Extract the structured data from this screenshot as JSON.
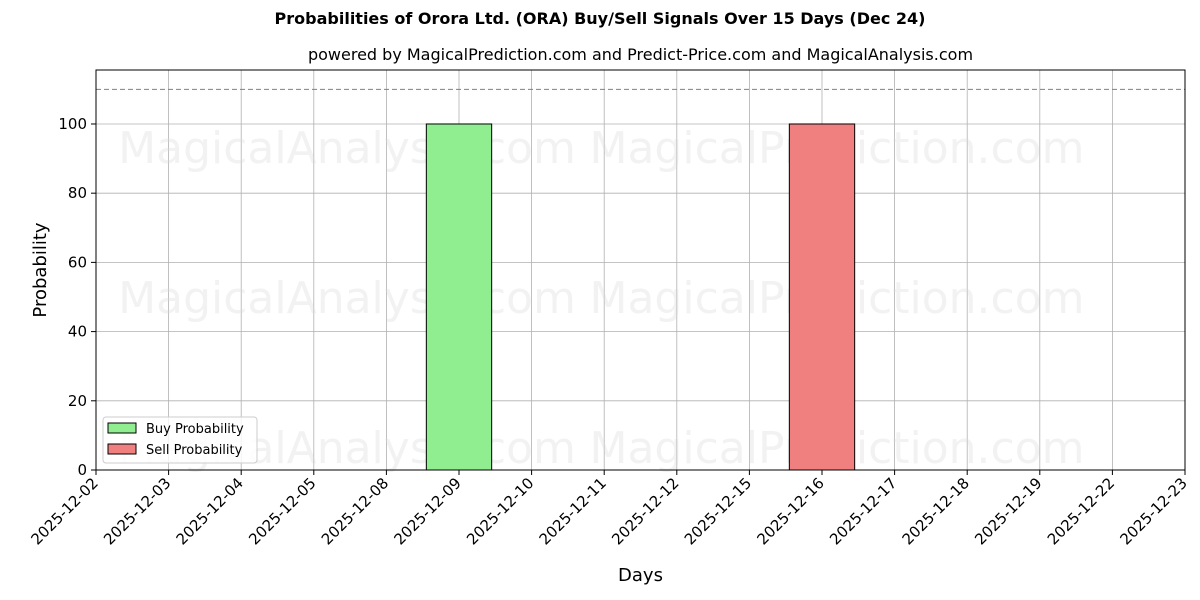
{
  "header": {
    "title": "Probabilities of Orora Ltd. (ORA) Buy/Sell Signals Over 15 Days (Dec 24)",
    "subtitle": "powered by MagicalPrediction.com and Predict-Price.com and MagicalAnalysis.com"
  },
  "watermarks": [
    "MagicalAnalysis.com",
    "MagicalPrediction.com"
  ],
  "legend": {
    "buy_label": "Buy Probability",
    "sell_label": "Sell Probability"
  },
  "colors": {
    "buy": "#90ee90",
    "sell": "#f08080",
    "grid": "#b0b0b0",
    "threshold": "#808080"
  },
  "chart_data": {
    "type": "bar",
    "title": "Probabilities of Orora Ltd. (ORA) Buy/Sell Signals Over 15 Days (Dec 24)",
    "subtitle": "powered by MagicalPrediction.com and Predict-Price.com and MagicalAnalysis.com",
    "xlabel": "Days",
    "ylabel": "Probability",
    "categories": [
      "2025-12-02",
      "2025-12-03",
      "2025-12-04",
      "2025-12-05",
      "2025-12-08",
      "2025-12-09",
      "2025-12-10",
      "2025-12-11",
      "2025-12-12",
      "2025-12-15",
      "2025-12-16",
      "2025-12-17",
      "2025-12-18",
      "2025-12-19",
      "2025-12-22",
      "2025-12-23"
    ],
    "series": [
      {
        "name": "Buy Probability",
        "color": "#90ee90",
        "values": [
          0,
          0,
          0,
          0,
          0,
          100,
          0,
          0,
          0,
          0,
          0,
          0,
          0,
          0,
          0,
          0
        ]
      },
      {
        "name": "Sell Probability",
        "color": "#f08080",
        "values": [
          0,
          0,
          0,
          0,
          0,
          0,
          0,
          0,
          0,
          0,
          100,
          0,
          0,
          0,
          0,
          0
        ]
      }
    ],
    "ylim": [
      0,
      115.6
    ],
    "yticks": [
      0,
      20,
      40,
      60,
      80,
      100
    ],
    "reference_line": {
      "y": 110,
      "style": "dashed"
    },
    "grid": true,
    "legend_position": "lower left"
  }
}
